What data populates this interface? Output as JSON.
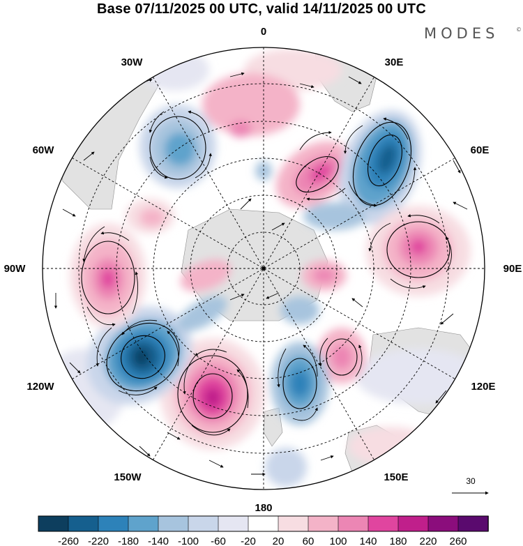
{
  "title": "Base 07/11/2025 00 UTC, valid 14/11/2025 00 UTC",
  "brand": {
    "name": "MODES",
    "mark": "©"
  },
  "longitude_labels": {
    "deg0": "0",
    "deg30e": "30E",
    "deg60e": "60E",
    "deg90e": "90E",
    "deg120e": "120E",
    "deg150e": "150E",
    "deg180": "180",
    "deg150w": "150W",
    "deg120w": "120W",
    "deg90w": "90W",
    "deg60w": "60W",
    "deg30w": "30W"
  },
  "vector_scale": {
    "value": "30"
  },
  "colorbar": {
    "labels": [
      "-260",
      "-220",
      "-180",
      "-140",
      "-100",
      "-60",
      "-20",
      "20",
      "60",
      "100",
      "140",
      "180",
      "220",
      "260"
    ],
    "colors": [
      "#0d3e5e",
      "#155f8e",
      "#2d82b9",
      "#5fa3cc",
      "#a7c4de",
      "#c9d6ea",
      "#e5e6f2",
      "#ffffff",
      "#f7dde2",
      "#f4b3c8",
      "#ec86b4",
      "#e0459f",
      "#c01f8b",
      "#8b0d7c",
      "#5a0a6e"
    ]
  },
  "anomaly_centers": [
    {
      "name": "blue-southatlantic-1",
      "sign": "negative",
      "magnitude": 140
    },
    {
      "name": "pink-pacific-west",
      "sign": "positive",
      "magnitude": 180
    },
    {
      "name": "blue-southpacific",
      "sign": "negative",
      "magnitude": 260
    },
    {
      "name": "pink-south-pacific-2",
      "sign": "positive",
      "magnitude": 220
    },
    {
      "name": "blue-ross",
      "sign": "negative",
      "magnitude": 180
    },
    {
      "name": "pink-tasman",
      "sign": "positive",
      "magnitude": 140
    },
    {
      "name": "blue-indian",
      "sign": "negative",
      "magnitude": 220
    },
    {
      "name": "pink-indian",
      "sign": "positive",
      "magnitude": 180
    },
    {
      "name": "pink-weddell",
      "sign": "positive",
      "magnitude": 180
    },
    {
      "name": "pink-drake",
      "sign": "positive",
      "magnitude": 100
    }
  ]
}
